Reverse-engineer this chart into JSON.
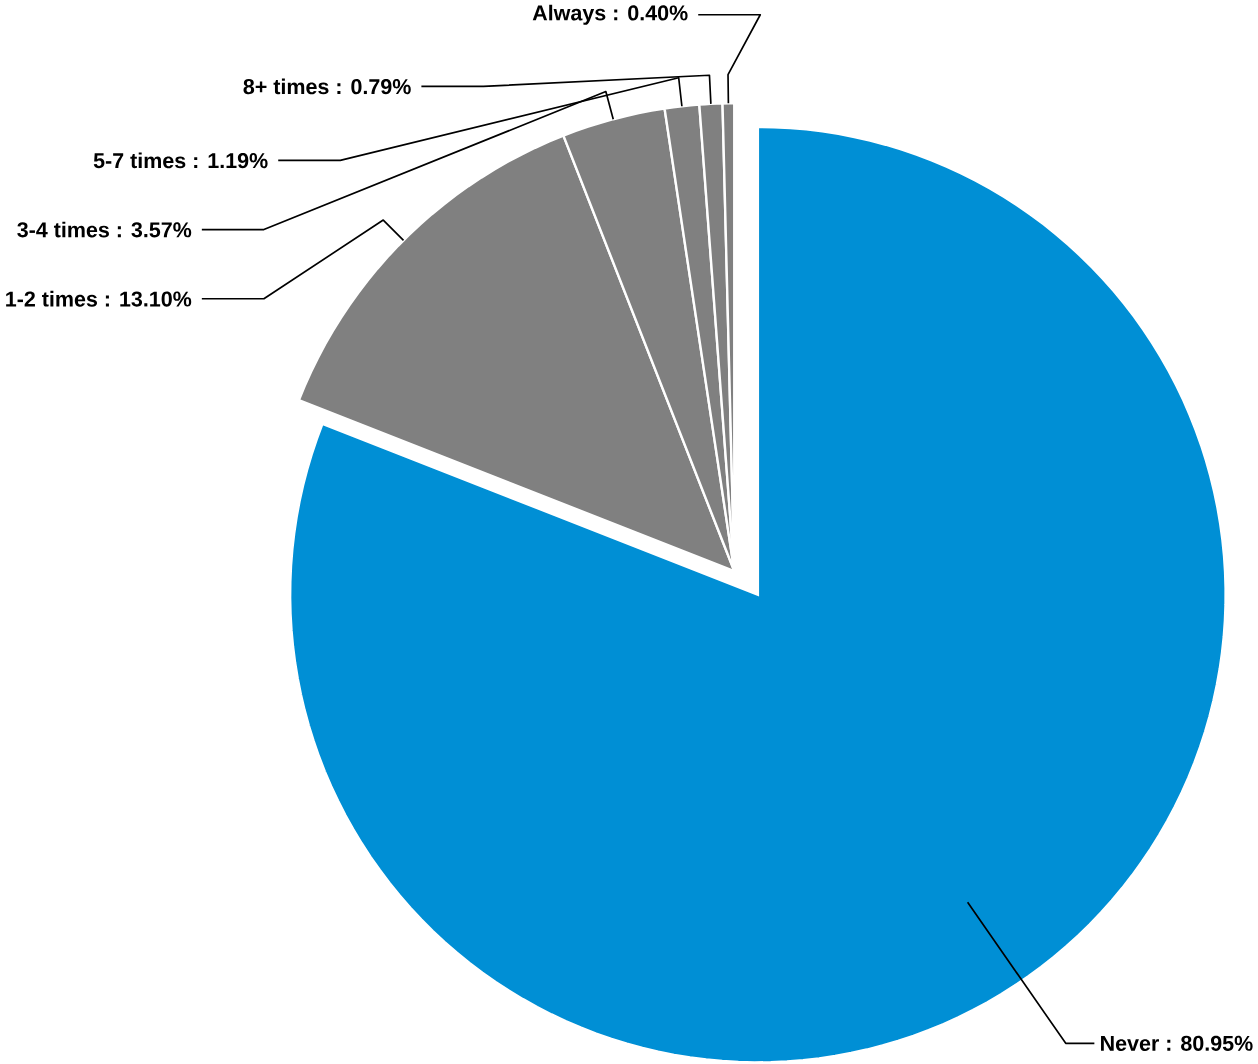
{
  "chart_data": {
    "type": "pie",
    "categories": [
      "Never : 80.95%",
      "1-2 times : 13.10%",
      "3-4 times : 3.57%",
      "5-7 times : 1.19%",
      "8+ times : 0.79%",
      "Always : 0.40%"
    ],
    "values": [
      80.95,
      13.1,
      3.57,
      1.19,
      0.79,
      0.4
    ],
    "colors": [
      "#008fd5",
      "#808080",
      "#808080",
      "#808080",
      "#808080",
      "#808080"
    ]
  }
}
